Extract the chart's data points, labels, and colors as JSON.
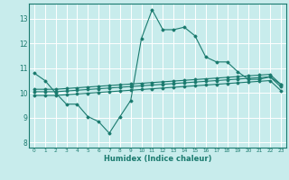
{
  "xlabel": "Humidex (Indice chaleur)",
  "bg_color": "#c8ecec",
  "line_color": "#1a7a6e",
  "grid_color": "#ffffff",
  "xlim": [
    -0.5,
    23.5
  ],
  "ylim": [
    7.8,
    13.6
  ],
  "yticks": [
    8,
    9,
    10,
    11,
    12,
    13
  ],
  "xticks": [
    0,
    1,
    2,
    3,
    4,
    5,
    6,
    7,
    8,
    9,
    10,
    11,
    12,
    13,
    14,
    15,
    16,
    17,
    18,
    19,
    20,
    21,
    22,
    23
  ],
  "line1_x": [
    0,
    1,
    2,
    3,
    4,
    5,
    6,
    7,
    8,
    9,
    10,
    11,
    12,
    13,
    14,
    15,
    16,
    17,
    18,
    19,
    20,
    21,
    22,
    23
  ],
  "line1_y": [
    10.8,
    10.5,
    10.0,
    9.55,
    9.55,
    9.05,
    8.85,
    8.38,
    9.05,
    9.7,
    12.2,
    13.35,
    12.55,
    12.55,
    12.65,
    12.3,
    11.45,
    11.25,
    11.25,
    10.85,
    10.55,
    10.55,
    10.65,
    10.35
  ],
  "line2_x": [
    0,
    1,
    2,
    3,
    4,
    5,
    6,
    7,
    8,
    9,
    10,
    11,
    12,
    13,
    14,
    15,
    16,
    17,
    18,
    19,
    20,
    21,
    22,
    23
  ],
  "line2_y": [
    10.15,
    10.15,
    10.15,
    10.18,
    10.21,
    10.24,
    10.27,
    10.3,
    10.33,
    10.36,
    10.39,
    10.42,
    10.45,
    10.48,
    10.51,
    10.54,
    10.57,
    10.6,
    10.63,
    10.66,
    10.69,
    10.72,
    10.75,
    10.35
  ],
  "line3_x": [
    0,
    1,
    2,
    3,
    4,
    5,
    6,
    7,
    8,
    9,
    10,
    11,
    12,
    13,
    14,
    15,
    16,
    17,
    18,
    19,
    20,
    21,
    22,
    23
  ],
  "line3_y": [
    10.05,
    10.05,
    10.05,
    10.08,
    10.11,
    10.14,
    10.17,
    10.2,
    10.23,
    10.26,
    10.29,
    10.32,
    10.35,
    10.38,
    10.41,
    10.44,
    10.47,
    10.5,
    10.53,
    10.56,
    10.59,
    10.62,
    10.65,
    10.25
  ],
  "line4_x": [
    0,
    1,
    2,
    3,
    4,
    5,
    6,
    7,
    8,
    9,
    10,
    11,
    12,
    13,
    14,
    15,
    16,
    17,
    18,
    19,
    20,
    21,
    22,
    23
  ],
  "line4_y": [
    9.9,
    9.9,
    9.9,
    9.93,
    9.96,
    9.99,
    10.02,
    10.05,
    10.08,
    10.11,
    10.14,
    10.17,
    10.2,
    10.23,
    10.26,
    10.29,
    10.32,
    10.35,
    10.38,
    10.41,
    10.44,
    10.47,
    10.5,
    10.1
  ]
}
